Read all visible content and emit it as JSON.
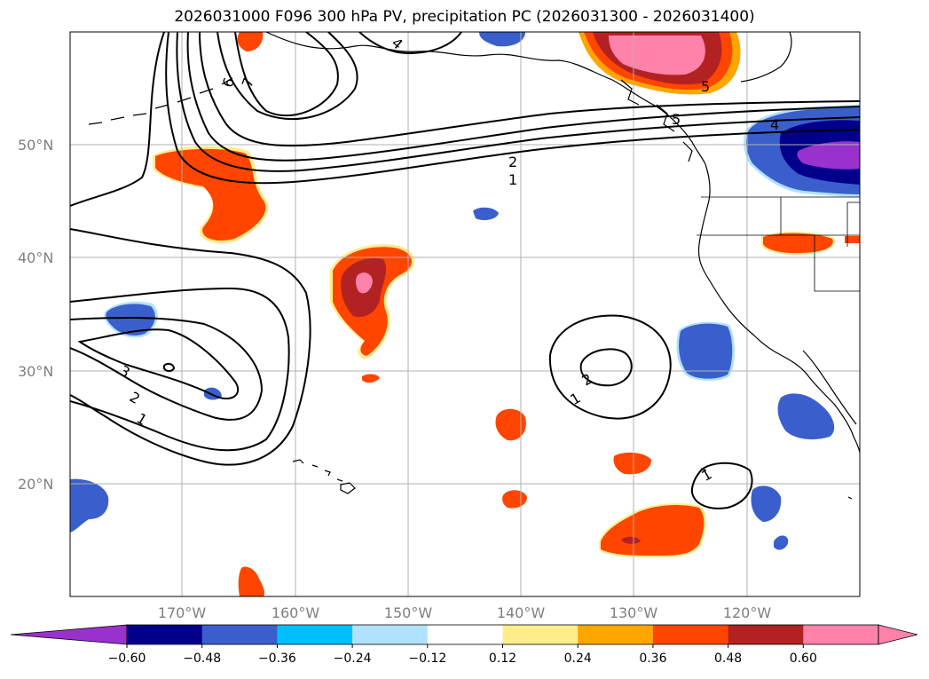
{
  "title": "2026031000 F096 300 hPa PV, precipitation PC (2026031300 - 2026031400)",
  "lat_labels": [
    "50°N",
    "40°N",
    "30°N",
    "20°N"
  ],
  "lon_labels": [
    "170°W",
    "160°W",
    "150°W",
    "140°W",
    "130°W",
    "120°W"
  ],
  "colorbar": {
    "ticks": [
      "−0.60",
      "−0.48",
      "−0.36",
      "−0.24",
      "−0.12",
      "0.12",
      "0.24",
      "0.36",
      "0.48",
      "0.60"
    ],
    "colors": [
      "#9932cc",
      "#00008b",
      "#3a5fcd",
      "#00bfff",
      "#b0e2ff",
      "#ffffff",
      "#ffec8b",
      "#ffa500",
      "#ff4500",
      "#b22222",
      "#ff82ab",
      "#ff82ab"
    ]
  },
  "contour_labels": [
    "6",
    "7",
    "5",
    "4",
    "2",
    "1",
    "3",
    "2",
    "1",
    "2",
    "1",
    "1",
    "4",
    "5"
  ],
  "colors": {
    "frame": "#000000",
    "grid": "#b0b0b0",
    "coast": "#000000"
  }
}
